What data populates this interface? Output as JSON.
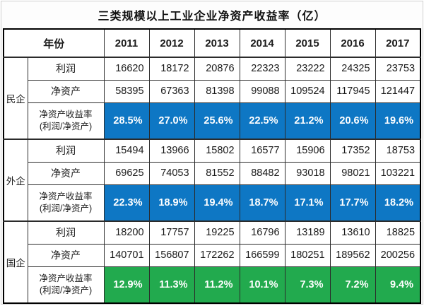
{
  "colors": {
    "roe_blue": "#0E77C4",
    "roe_green": "#22AA4E"
  },
  "chart_data": {
    "type": "table",
    "title": "三类规模以上工业企业净资产收益率（亿）",
    "year_header": "年份",
    "years": [
      "2011",
      "2012",
      "2013",
      "2014",
      "2015",
      "2016",
      "2017"
    ],
    "metrics": {
      "profit": "利润",
      "net_assets": "净资产",
      "roe_line1": "净资产收益率",
      "roe_line2": "(利润/净资产)"
    },
    "groups": [
      {
        "name": "民企",
        "roe_color": "blue",
        "profit": [
          "16620",
          "18172",
          "20876",
          "22323",
          "23222",
          "24325",
          "23753"
        ],
        "net_assets": [
          "58395",
          "67363",
          "81398",
          "99088",
          "109524",
          "117945",
          "121447"
        ],
        "roe": [
          "28.5%",
          "27.0%",
          "25.6%",
          "22.5%",
          "21.2%",
          "20.6%",
          "19.6%"
        ]
      },
      {
        "name": "外企",
        "roe_color": "blue",
        "profit": [
          "15494",
          "13966",
          "15802",
          "16577",
          "15906",
          "17352",
          "18753"
        ],
        "net_assets": [
          "69625",
          "74053",
          "81552",
          "88482",
          "93018",
          "98021",
          "103221"
        ],
        "roe": [
          "22.3%",
          "18.9%",
          "19.4%",
          "18.7%",
          "17.1%",
          "17.7%",
          "18.2%"
        ]
      },
      {
        "name": "国企",
        "roe_color": "green",
        "profit": [
          "18200",
          "17757",
          "19225",
          "16796",
          "13189",
          "13610",
          "18825"
        ],
        "net_assets": [
          "140701",
          "156807",
          "172262",
          "166599",
          "180251",
          "189562",
          "200256"
        ],
        "roe": [
          "12.9%",
          "11.3%",
          "11.2%",
          "10.1%",
          "7.3%",
          "7.2%",
          "9.4%"
        ]
      }
    ]
  }
}
